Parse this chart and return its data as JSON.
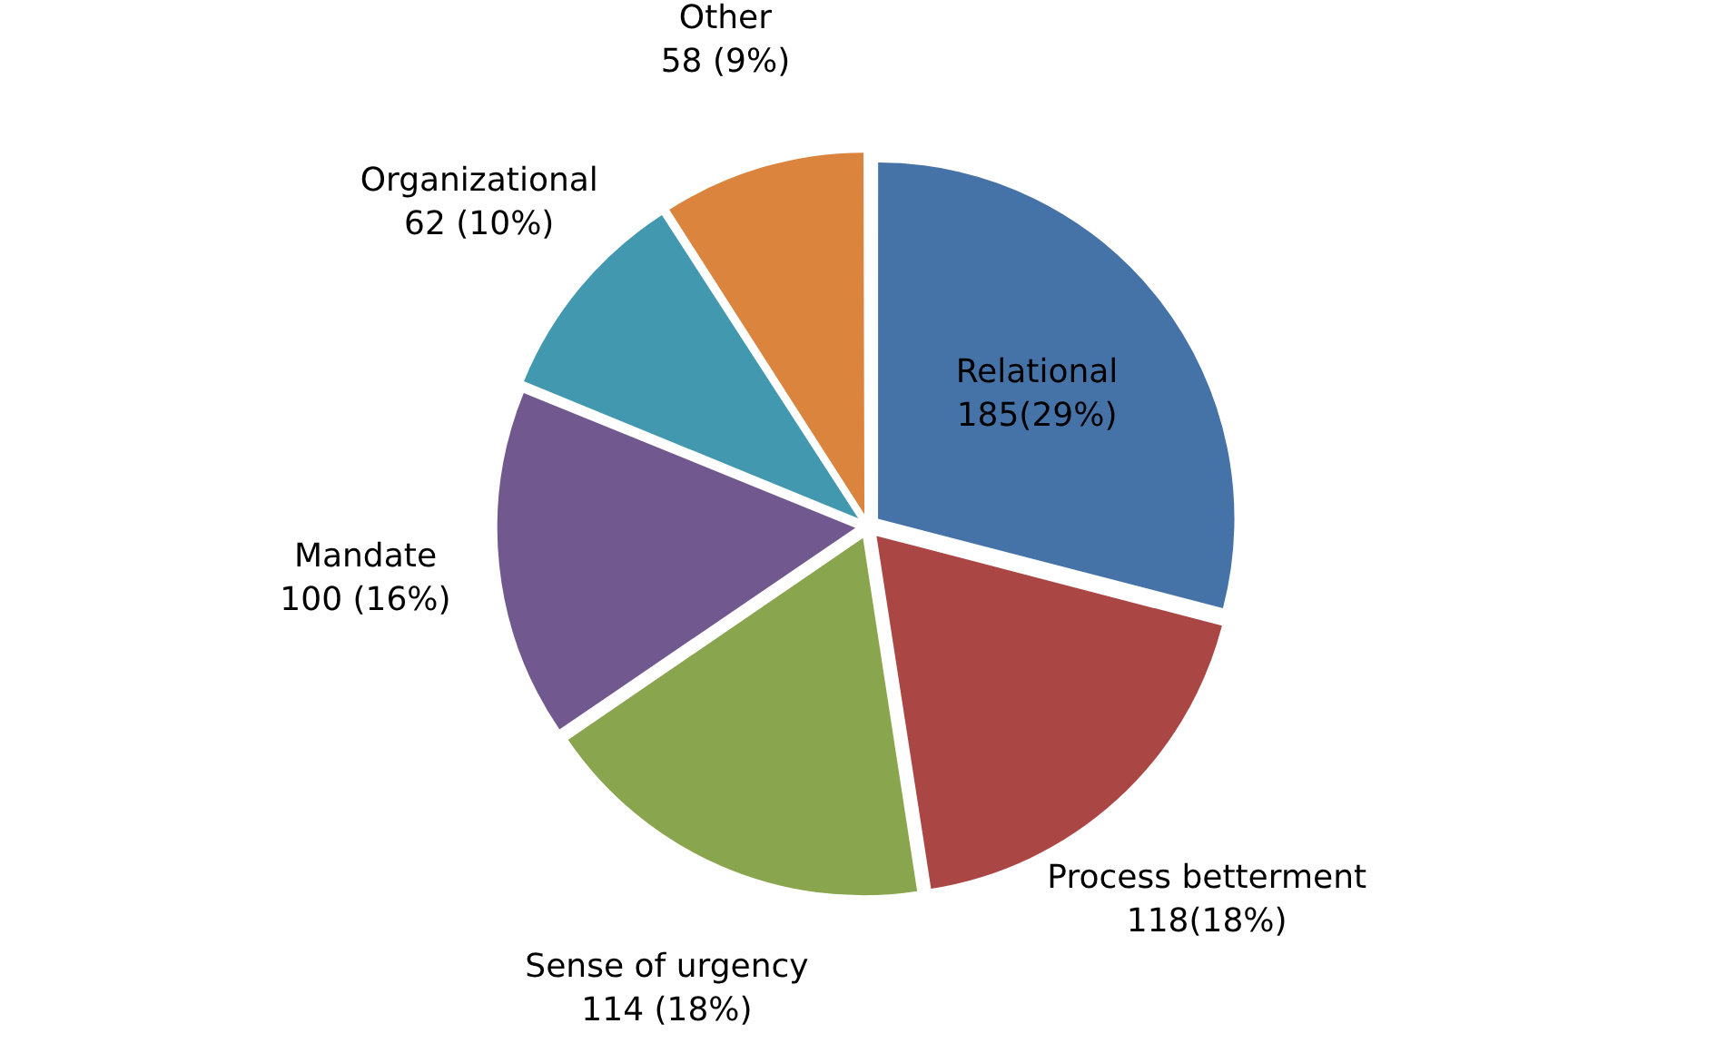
{
  "chart_data": {
    "type": "pie",
    "categories": [
      "Relational",
      "Process betterment",
      "Sense of urgency",
      "Mandate",
      "Organizational",
      "Other"
    ],
    "values": [
      185,
      118,
      114,
      100,
      62,
      58
    ],
    "colors": [
      "#4572a7",
      "#aa4643",
      "#89a54e",
      "#71588f",
      "#4198af",
      "#db843d"
    ],
    "value_labels": [
      "185(29%)",
      "118(18%)",
      "114 (18%)",
      "100 (16%)",
      "62 (10%)",
      "58 (9%)"
    ],
    "legend": false
  }
}
